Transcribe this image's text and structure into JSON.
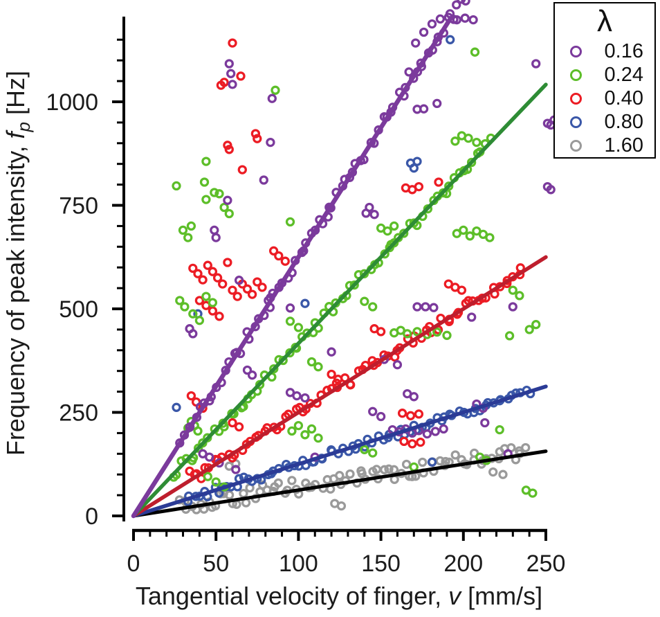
{
  "figure": {
    "background": "#ffffff",
    "text_color": "#1b1b1b"
  },
  "axis": {
    "x": {
      "prefix": "Tangential velocity of finger, ",
      "var": "v",
      "suffix": " [mm/s]"
    },
    "y": {
      "prefix": "Frequency of peak intensity, ",
      "var": "f",
      "sub": "p",
      "suffix": " [Hz]"
    }
  },
  "legend": {
    "title": "λ",
    "items": [
      {
        "label": "0.16",
        "color": "#7b3a9c"
      },
      {
        "label": "0.24",
        "color": "#5dbe29"
      },
      {
        "label": "0.40",
        "color": "#ec1c24"
      },
      {
        "label": "0.80",
        "color": "#3a57a8"
      },
      {
        "label": "1.60",
        "color": "#9a9a9a"
      }
    ]
  },
  "chart_data": {
    "type": "scatter",
    "title": "",
    "xlabel": "Tangential velocity of finger, v [mm/s]",
    "ylabel": "Frequency of peak intensity, f_p [Hz]",
    "xlim": [
      0,
      252
    ],
    "ylim": [
      0,
      1205
    ],
    "x_ticks": [
      0,
      50,
      100,
      150,
      200,
      250
    ],
    "y_ticks": [
      0,
      250,
      500,
      750,
      1000
    ],
    "x_minor_step": 10,
    "y_minor_step": 50,
    "grid": false,
    "legend_title": "λ",
    "legend_position": "top-right",
    "fit_model": "linear through origin, slope = 1/lambda",
    "series": [
      {
        "name": "lambda-0.16",
        "label": "0.16",
        "lambda": 0.16,
        "slope": 6.25,
        "marker_color": "#7b3a9c",
        "line_color": "#7b3a9c",
        "line_width": 6.5,
        "fit_line": {
          "v0": 0,
          "v1": 192
        },
        "band": {
          "v_min": 28,
          "v_max": 206,
          "count": 72,
          "f_jitter": 15,
          "v_jitter": 1.5,
          "bias": 0,
          "seed": 11
        },
        "outliers": [
          [
            58,
            1092
          ],
          [
            59,
            1068
          ],
          [
            60,
            1042
          ],
          [
            84,
            1008
          ],
          [
            83,
            902
          ],
          [
            79,
            811
          ],
          [
            57,
            762
          ],
          [
            167,
            1072
          ],
          [
            172,
            982
          ],
          [
            176,
            983
          ],
          [
            184,
            996
          ],
          [
            244,
            1092
          ],
          [
            251,
            948
          ],
          [
            253,
            944
          ],
          [
            251,
            795
          ],
          [
            253,
            788
          ],
          [
            255,
            956
          ],
          [
            141,
            731
          ],
          [
            143,
            745
          ],
          [
            146,
            728
          ],
          [
            118,
            722
          ],
          [
            49,
            690
          ],
          [
            50,
            672
          ],
          [
            64,
            569
          ],
          [
            83,
            527
          ],
          [
            95,
            502
          ],
          [
            120,
            396
          ],
          [
            69,
            352
          ],
          [
            72,
            340
          ],
          [
            172,
            505
          ],
          [
            177,
            505
          ],
          [
            182,
            503
          ],
          [
            157,
            208
          ],
          [
            161,
            203
          ],
          [
            165,
            210
          ],
          [
            169,
            200
          ],
          [
            173,
            206
          ],
          [
            178,
            198
          ],
          [
            183,
            204
          ],
          [
            188,
            210
          ],
          [
            150,
            240
          ],
          [
            145,
            252
          ],
          [
            166,
            295
          ],
          [
            170,
            288
          ],
          [
            213,
            225
          ],
          [
            227,
            150
          ],
          [
            42,
            150
          ],
          [
            46,
            142
          ],
          [
            52,
            128
          ],
          [
            62,
            112
          ],
          [
            110,
            142
          ],
          [
            95,
            298
          ],
          [
            99,
            290
          ],
          [
            104,
            285
          ],
          [
            208,
            270
          ],
          [
            212,
            260
          ],
          [
            186,
            1200
          ],
          [
            191,
            1204
          ],
          [
            196,
            1198
          ],
          [
            201,
            1202
          ],
          [
            206,
            1198
          ],
          [
            171,
            1142
          ],
          [
            176,
            1168
          ],
          [
            181,
            1188
          ],
          [
            34,
            452
          ],
          [
            36,
            440
          ],
          [
            205,
            480
          ],
          [
            230,
            505
          ],
          [
            152,
            378
          ],
          [
            160,
            365
          ]
        ]
      },
      {
        "name": "lambda-0.24",
        "label": "0.24",
        "lambda": 0.24,
        "slope": 4.1667,
        "marker_color": "#5dbe29",
        "line_color": "#2e8c35",
        "line_width": 5.5,
        "fit_line": {
          "v0": 0,
          "v1": 250
        },
        "band": {
          "v_min": 24,
          "v_max": 216,
          "count": 72,
          "f_jitter": 15,
          "v_jitter": 1.5,
          "bias": 0,
          "seed": 22
        },
        "outliers": [
          [
            207,
            1120
          ],
          [
            86,
            1028
          ],
          [
            44,
            856
          ],
          [
            26,
            797
          ],
          [
            43,
            806
          ],
          [
            49,
            781
          ],
          [
            52,
            778
          ],
          [
            44,
            764
          ],
          [
            30,
            690
          ],
          [
            33,
            672
          ],
          [
            35,
            700
          ],
          [
            55,
            745
          ],
          [
            58,
            730
          ],
          [
            95,
            710
          ],
          [
            150,
            695
          ],
          [
            154,
            688
          ],
          [
            158,
            700
          ],
          [
            196,
            682
          ],
          [
            200,
            690
          ],
          [
            204,
            676
          ],
          [
            208,
            688
          ],
          [
            212,
            680
          ],
          [
            216,
            672
          ],
          [
            195,
            905
          ],
          [
            199,
            918
          ],
          [
            203,
            912
          ],
          [
            208,
            902
          ],
          [
            28,
            520
          ],
          [
            31,
            505
          ],
          [
            36,
            488
          ],
          [
            40,
            472
          ],
          [
            44,
            530
          ],
          [
            48,
            515
          ],
          [
            95,
            470
          ],
          [
            100,
            455
          ],
          [
            140,
            518
          ],
          [
            145,
            505
          ],
          [
            230,
            545
          ],
          [
            234,
            532
          ],
          [
            240,
            450
          ],
          [
            244,
            462
          ],
          [
            228,
            435
          ],
          [
            108,
            372
          ],
          [
            112,
            360
          ],
          [
            33,
            212
          ],
          [
            35,
            228
          ],
          [
            37,
            218
          ],
          [
            39,
            205
          ],
          [
            96,
            205
          ],
          [
            100,
            218
          ],
          [
            104,
            196
          ],
          [
            108,
            210
          ],
          [
            112,
            188
          ],
          [
            45,
            95
          ],
          [
            50,
            82
          ],
          [
            55,
            70
          ],
          [
            140,
            160
          ],
          [
            145,
            152
          ],
          [
            170,
            118
          ],
          [
            210,
            142
          ],
          [
            214,
            134
          ],
          [
            222,
            208
          ],
          [
            238,
            62
          ],
          [
            242,
            55
          ],
          [
            158,
            442
          ],
          [
            162,
            448
          ],
          [
            166,
            440
          ],
          [
            172,
            445
          ],
          [
            178,
            438
          ],
          [
            184,
            444
          ],
          [
            190,
            436
          ]
        ]
      },
      {
        "name": "lambda-0.40",
        "label": "0.40",
        "lambda": 0.4,
        "slope": 2.5,
        "marker_color": "#ec1c24",
        "line_color": "#be1e2d",
        "line_width": 5.5,
        "fit_line": {
          "v0": 0,
          "v1": 250
        },
        "band": {
          "v_min": 38,
          "v_max": 236,
          "count": 74,
          "f_jitter": 13,
          "v_jitter": 1.5,
          "bias": 0,
          "seed": 33
        },
        "outliers": [
          [
            60,
            1142
          ],
          [
            65,
            1062
          ],
          [
            55,
            1047
          ],
          [
            53,
            1040
          ],
          [
            74,
            923
          ],
          [
            75,
            911
          ],
          [
            57,
            895
          ],
          [
            58,
            885
          ],
          [
            66,
            836
          ],
          [
            165,
            792
          ],
          [
            169,
            788
          ],
          [
            173,
            795
          ],
          [
            185,
            806
          ],
          [
            36,
            598
          ],
          [
            39,
            585
          ],
          [
            42,
            570
          ],
          [
            45,
            605
          ],
          [
            48,
            590
          ],
          [
            51,
            575
          ],
          [
            54,
            560
          ],
          [
            57,
            612
          ],
          [
            60,
            545
          ],
          [
            63,
            530
          ],
          [
            66,
            560
          ],
          [
            69,
            548
          ],
          [
            72,
            535
          ],
          [
            75,
            565
          ],
          [
            78,
            552
          ],
          [
            40,
            520
          ],
          [
            44,
            508
          ],
          [
            48,
            495
          ],
          [
            52,
            482
          ],
          [
            85,
            640
          ],
          [
            88,
            628
          ],
          [
            92,
            615
          ],
          [
            191,
            560
          ],
          [
            195,
            552
          ],
          [
            199,
            545
          ],
          [
            35,
            290
          ],
          [
            38,
            275
          ],
          [
            42,
            260
          ],
          [
            34,
            108
          ],
          [
            37,
            100
          ],
          [
            60,
            225
          ],
          [
            64,
            215
          ],
          [
            163,
            248
          ],
          [
            168,
            242
          ],
          [
            173,
            246
          ],
          [
            164,
            180
          ],
          [
            169,
            174
          ],
          [
            174,
            178
          ],
          [
            120,
            342
          ],
          [
            124,
            330
          ],
          [
            146,
            452
          ],
          [
            150,
            445
          ]
        ]
      },
      {
        "name": "lambda-0.80",
        "label": "0.80",
        "lambda": 0.8,
        "slope": 1.25,
        "marker_color": "#3a57a8",
        "line_color": "#2b3b96",
        "line_width": 5.5,
        "fit_line": {
          "v0": 0,
          "v1": 250
        },
        "band": {
          "v_min": 32,
          "v_max": 240,
          "count": 78,
          "f_jitter": 10,
          "v_jitter": 1.5,
          "bias": 0,
          "seed": 44
        },
        "outliers": [
          [
            26,
            262
          ],
          [
            39,
            488
          ],
          [
            104,
            513
          ],
          [
            168,
            852
          ],
          [
            170,
            840
          ],
          [
            172,
            856
          ],
          [
            192,
            1150
          ],
          [
            181,
            130
          ]
        ]
      },
      {
        "name": "lambda-1.60",
        "label": "1.60",
        "lambda": 1.6,
        "slope": 0.625,
        "marker_color": "#9a9a9a",
        "line_color": "#000000",
        "line_width": 5,
        "fit_line": {
          "v0": 0,
          "v1": 250
        },
        "band": {
          "v_min": 28,
          "v_max": 238,
          "count": 84,
          "f_jitter": 19,
          "v_jitter": 1.5,
          "bias": 7,
          "seed": 55
        },
        "outliers": [
          [
            122,
            30
          ],
          [
            126,
            24
          ],
          [
            58,
            120
          ],
          [
            62,
            126
          ],
          [
            218,
            106
          ],
          [
            224,
            100
          ]
        ]
      }
    ]
  }
}
